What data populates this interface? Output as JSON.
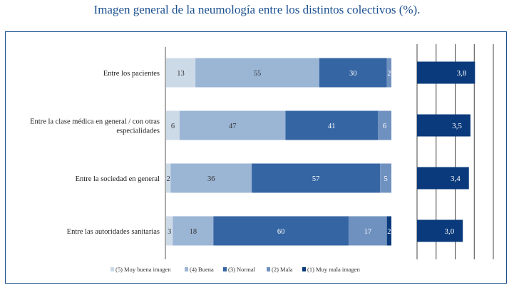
{
  "title": "Imagen general de la neumología entre los distintos colectivos (%).",
  "legend": [
    {
      "label": "(5) Muy buena imagen",
      "color": "#ccdae8"
    },
    {
      "label": "(4) Buena",
      "color": "#9bb5d5"
    },
    {
      "label": "(3) Normal",
      "color": "#3565a3"
    },
    {
      "label": "(2) Mala",
      "color": "#6f91bf"
    },
    {
      "label": "(1) Muy mala imagen",
      "color": "#0a3a7c"
    }
  ],
  "chart_data": [
    {
      "type": "bar",
      "orientation": "horizontal",
      "stacked": true,
      "categories": [
        [
          "Entre los pacientes"
        ],
        [
          "Entre la clase médica en general / con otras",
          "especialidades"
        ],
        [
          "Entre la sociedad en general"
        ],
        [
          "Entre las autoridades sanitarias"
        ]
      ],
      "series": [
        {
          "name": "(5) Muy buena imagen",
          "color": "#ccdae8",
          "values": [
            13,
            6,
            2,
            3
          ]
        },
        {
          "name": "(4) Buena",
          "color": "#9bb5d5",
          "values": [
            55,
            47,
            36,
            18
          ]
        },
        {
          "name": "(3) Normal",
          "color": "#3565a3",
          "values": [
            30,
            41,
            57,
            60
          ]
        },
        {
          "name": "(2) Mala",
          "color": "#6f91bf",
          "values": [
            2,
            6,
            5,
            17
          ]
        },
        {
          "name": "(1) Muy mala imagen",
          "color": "#0a3a7c",
          "values": [
            0,
            0,
            0,
            2
          ]
        }
      ],
      "xlim": [
        0,
        100
      ],
      "legend_position": "bottom"
    },
    {
      "type": "bar",
      "orientation": "horizontal",
      "categories": [
        "Entre los pacientes",
        "Entre la clase médica en general / con otras especialidades",
        "Entre la sociedad en general",
        "Entre las autoridades sanitarias"
      ],
      "values": [
        3.8,
        3.5,
        3.4,
        3.0
      ],
      "labels": [
        "3,8",
        "3,5",
        "3,4",
        "3,0"
      ],
      "color": "#0a3a7c",
      "xlim": [
        1,
        5
      ],
      "grid": true
    }
  ]
}
